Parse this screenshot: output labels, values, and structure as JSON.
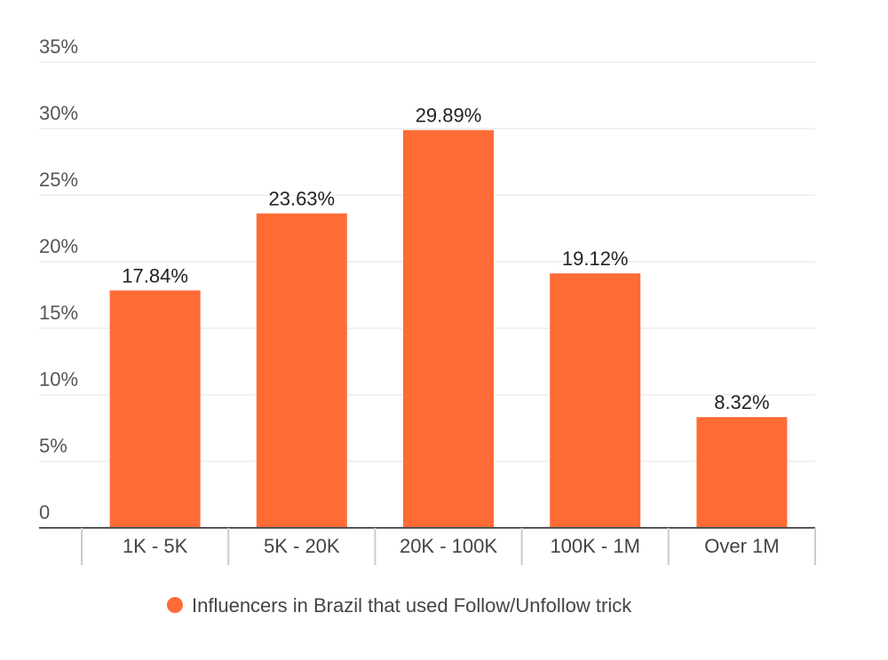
{
  "chart_data": {
    "type": "bar",
    "categories": [
      "1K - 5K",
      "5K - 20K",
      "20K - 100K",
      "100K - 1M",
      "Over 1M"
    ],
    "series": [
      {
        "name": "Influencers in Brazil that used Follow/Unfollow trick",
        "values": [
          17.84,
          23.63,
          29.89,
          19.12,
          8.32
        ],
        "data_labels": [
          "17.84%",
          "23.63%",
          "29.89%",
          "19.12%",
          "8.32%"
        ],
        "color": "#FF6B35"
      }
    ],
    "ylim": [
      0,
      35
    ],
    "yticks": [
      0,
      5,
      10,
      15,
      20,
      25,
      30,
      35
    ],
    "ytick_labels": [
      "0",
      "5%",
      "10%",
      "15%",
      "20%",
      "25%",
      "30%",
      "35%"
    ],
    "grid": true,
    "legend_position": "bottom-center"
  }
}
